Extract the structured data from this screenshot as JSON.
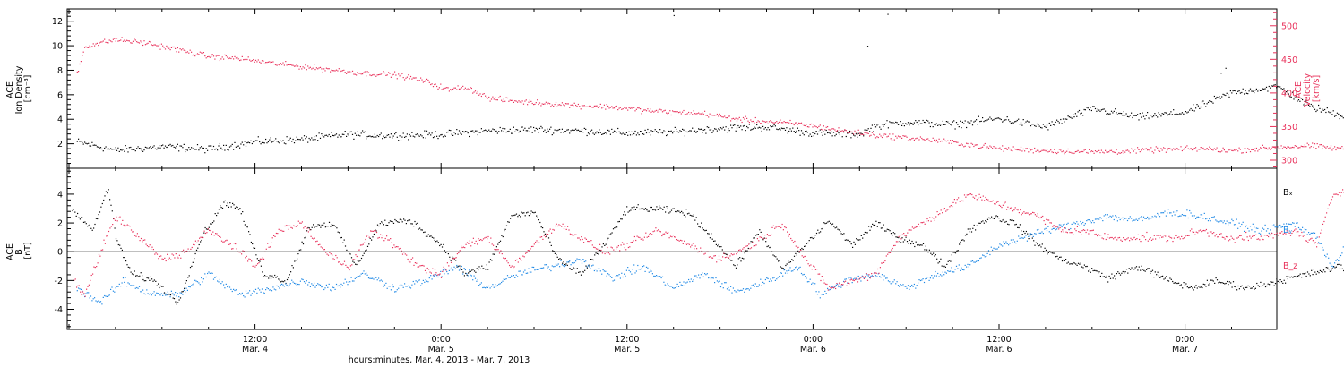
{
  "chart_data": [
    {
      "type": "scatter",
      "name": "solar-wind-plasma",
      "x_range_hours": [
        0,
        72
      ],
      "left_axis": {
        "label_lines": [
          "ACE",
          "Ion Density",
          "[cm⁻³]"
        ],
        "ylim": [
          0,
          13
        ],
        "ticks": [
          2,
          4,
          6,
          8,
          10,
          12
        ],
        "color": "#000000"
      },
      "right_axis": {
        "label_lines": [
          "ACE",
          "Velocity",
          "[km/s]"
        ],
        "ylim": [
          288,
          525
        ],
        "ticks": [
          300,
          350,
          400,
          450,
          500
        ],
        "color": "#e8305a"
      },
      "series": [
        {
          "axis": "left",
          "color": "#000000",
          "jitter": 0.45,
          "points": [
            [
              0.5,
              2.2
            ],
            [
              3,
              1.5
            ],
            [
              6,
              1.8
            ],
            [
              9,
              1.6
            ],
            [
              12,
              2.2
            ],
            [
              15,
              2.4
            ],
            [
              18,
              2.8
            ],
            [
              21,
              2.7
            ],
            [
              24,
              2.8
            ],
            [
              27,
              3.1
            ],
            [
              30,
              3.2
            ],
            [
              33,
              3.1
            ],
            [
              36,
              2.9
            ],
            [
              39,
              3.0
            ],
            [
              42,
              3.3
            ],
            [
              45,
              3.4
            ],
            [
              48,
              2.9
            ],
            [
              51,
              2.8
            ],
            [
              52,
              3.5
            ],
            [
              54,
              3.8
            ],
            [
              57,
              3.6
            ],
            [
              60,
              4.1
            ],
            [
              63,
              3.4
            ],
            [
              66,
              4.9
            ],
            [
              69,
              4.2
            ],
            [
              72,
              4.6
            ],
            [
              75,
              6.2
            ],
            [
              78,
              6.7
            ],
            [
              80,
              5.1
            ],
            [
              83,
              4.0
            ],
            [
              84.5,
              3.5
            ],
            [
              84,
              4.0
            ]
          ]
        },
        {
          "axis": "right",
          "color": "#e8305a",
          "jitter": 6,
          "points": [
            [
              0.5,
              430
            ],
            [
              1,
              470
            ],
            [
              3,
              480
            ],
            [
              5,
              475
            ],
            [
              7,
              465
            ],
            [
              9,
              455
            ],
            [
              11,
              452
            ],
            [
              13,
              445
            ],
            [
              15,
              440
            ],
            [
              17,
              435
            ],
            [
              19,
              430
            ],
            [
              21,
              428
            ],
            [
              23,
              418
            ],
            [
              24.5,
              405
            ],
            [
              25.5,
              410
            ],
            [
              26.5,
              400
            ],
            [
              27,
              393
            ],
            [
              29,
              388
            ],
            [
              31,
              385
            ],
            [
              33,
              382
            ],
            [
              35,
              380
            ],
            [
              37,
              375
            ],
            [
              39,
              372
            ],
            [
              41,
              370
            ],
            [
              43,
              362
            ],
            [
              45,
              358
            ],
            [
              47,
              355
            ],
            [
              48.5,
              350
            ],
            [
              50,
              344
            ],
            [
              52,
              338
            ],
            [
              54,
              334
            ],
            [
              56,
              330
            ],
            [
              58,
              324
            ],
            [
              60,
              318
            ],
            [
              63,
              315
            ],
            [
              66,
              313
            ],
            [
              68,
              314
            ],
            [
              70,
              316
            ],
            [
              73,
              318
            ],
            [
              75,
              315
            ],
            [
              78,
              320
            ],
            [
              80,
              322
            ],
            [
              82,
              318
            ],
            [
              84,
              312
            ]
          ]
        }
      ],
      "outliers": [
        [
          52.8,
          12.6
        ],
        [
          51.5,
          10.0
        ],
        [
          74.6,
          8.2
        ],
        [
          74.3,
          7.8
        ],
        [
          84.3,
          9.0
        ],
        [
          39.0,
          12.5
        ]
      ]
    },
    {
      "type": "scatter",
      "name": "imf-components",
      "x_range_hours": [
        0,
        72
      ],
      "left_axis": {
        "label_lines": [
          "ACE",
          "B",
          "[nT]"
        ],
        "ylim": [
          -5.4,
          5.8
        ],
        "ticks": [
          -4,
          -2,
          0,
          2,
          4
        ],
        "color": "#000000"
      },
      "zero_line": true,
      "legend": [
        {
          "label": "Bₓ",
          "color": "#000000"
        },
        {
          "label": "Bᵧ",
          "color": "#1e88e5"
        },
        {
          "label": "B_z",
          "color": "#e8305a"
        }
      ],
      "series": [
        {
          "name": "Bx",
          "color": "#000000",
          "jitter": 0.35,
          "points": [
            [
              0.2,
              3.0
            ],
            [
              1.5,
              1.5
            ],
            [
              2.5,
              4.5
            ],
            [
              3,
              1.0
            ],
            [
              4,
              -1.5
            ],
            [
              5.5,
              -2.0
            ],
            [
              7,
              -3.5
            ],
            [
              8.5,
              1.0
            ],
            [
              10,
              3.5
            ],
            [
              11,
              3.0
            ],
            [
              12.5,
              -1.5
            ],
            [
              14,
              -2.0
            ],
            [
              15.5,
              1.8
            ],
            [
              17,
              2.0
            ],
            [
              18.5,
              -1.0
            ],
            [
              20,
              2.0
            ],
            [
              22,
              2.2
            ],
            [
              24,
              0.5
            ],
            [
              25.5,
              -1.5
            ],
            [
              27,
              -1.0
            ],
            [
              28.5,
              2.5
            ],
            [
              30,
              2.8
            ],
            [
              31.5,
              -0.5
            ],
            [
              33,
              -1.5
            ],
            [
              34.5,
              0.5
            ],
            [
              36,
              3.0
            ],
            [
              38,
              3.0
            ],
            [
              40,
              2.7
            ],
            [
              41.5,
              1.0
            ],
            [
              43,
              -1.0
            ],
            [
              44.5,
              1.5
            ],
            [
              46,
              -1.2
            ],
            [
              47.5,
              0.5
            ],
            [
              49,
              2.2
            ],
            [
              50.5,
              0.5
            ],
            [
              52,
              2.0
            ],
            [
              53.5,
              1.0
            ],
            [
              55,
              0.5
            ],
            [
              56.5,
              -1.0
            ],
            [
              58,
              1.5
            ],
            [
              59.5,
              2.5
            ],
            [
              61,
              2.0
            ],
            [
              62.5,
              0.5
            ],
            [
              64,
              -0.5
            ],
            [
              65.5,
              -1.0
            ],
            [
              67,
              -1.8
            ],
            [
              69,
              -1.0
            ],
            [
              71,
              -2.0
            ],
            [
              72.5,
              -2.5
            ],
            [
              74,
              -2.0
            ],
            [
              76,
              -2.5
            ],
            [
              78,
              -2.0
            ],
            [
              80,
              -1.5
            ],
            [
              82,
              -1.0
            ],
            [
              83,
              -2.5
            ],
            [
              84,
              -3.0
            ]
          ]
        },
        {
          "name": "By",
          "color": "#1e88e5",
          "jitter": 0.4,
          "points": [
            [
              0.5,
              -2.5
            ],
            [
              2,
              -3.5
            ],
            [
              3.5,
              -2.0
            ],
            [
              5,
              -2.8
            ],
            [
              7,
              -3.0
            ],
            [
              9,
              -1.5
            ],
            [
              11,
              -3.0
            ],
            [
              13,
              -2.5
            ],
            [
              15,
              -2.0
            ],
            [
              17,
              -2.5
            ],
            [
              19,
              -1.5
            ],
            [
              21,
              -2.5
            ],
            [
              23,
              -2.0
            ],
            [
              25,
              -1.0
            ],
            [
              27,
              -2.5
            ],
            [
              29,
              -1.5
            ],
            [
              31,
              -1.0
            ],
            [
              33,
              -0.5
            ],
            [
              35,
              -1.8
            ],
            [
              37,
              -1.0
            ],
            [
              39,
              -2.5
            ],
            [
              41,
              -1.5
            ],
            [
              43,
              -2.8
            ],
            [
              45,
              -2.0
            ],
            [
              47,
              -1.0
            ],
            [
              48.5,
              -3.0
            ],
            [
              50,
              -2.0
            ],
            [
              52,
              -1.5
            ],
            [
              54,
              -2.5
            ],
            [
              56,
              -1.5
            ],
            [
              58,
              -1.0
            ],
            [
              60,
              0.5
            ],
            [
              61.5,
              1.0
            ],
            [
              63,
              1.5
            ],
            [
              65,
              2.0
            ],
            [
              67,
              2.5
            ],
            [
              69,
              2.2
            ],
            [
              71,
              2.8
            ],
            [
              73,
              2.5
            ],
            [
              75,
              2.0
            ],
            [
              77,
              1.5
            ],
            [
              79,
              2.0
            ],
            [
              80.5,
              1.0
            ],
            [
              81.5,
              -1.0
            ],
            [
              83,
              1.5
            ],
            [
              84.5,
              3.0
            ]
          ]
        },
        {
          "name": "Bz",
          "color": "#e8305a",
          "jitter": 0.4,
          "points": [
            [
              0.3,
              -2.0
            ],
            [
              1,
              -3.0
            ],
            [
              2,
              0.0
            ],
            [
              3,
              2.5
            ],
            [
              4.5,
              1.0
            ],
            [
              6,
              -0.5
            ],
            [
              7.5,
              0.0
            ],
            [
              9,
              1.5
            ],
            [
              10.5,
              0.5
            ],
            [
              12,
              -1.0
            ],
            [
              13.5,
              1.5
            ],
            [
              15,
              2.0
            ],
            [
              16.5,
              0.0
            ],
            [
              18,
              -1.0
            ],
            [
              19.5,
              1.5
            ],
            [
              21,
              0.5
            ],
            [
              22.5,
              -1.0
            ],
            [
              24,
              -1.5
            ],
            [
              25.5,
              0.5
            ],
            [
              27,
              1.0
            ],
            [
              28.5,
              -1.0
            ],
            [
              30,
              0.5
            ],
            [
              31.5,
              2.0
            ],
            [
              33,
              1.0
            ],
            [
              34.5,
              0.0
            ],
            [
              36,
              0.5
            ],
            [
              38,
              1.5
            ],
            [
              40,
              0.5
            ],
            [
              42,
              -0.5
            ],
            [
              44,
              0.5
            ],
            [
              46,
              2.0
            ],
            [
              47.5,
              -0.5
            ],
            [
              49,
              -2.5
            ],
            [
              50.5,
              -2.0
            ],
            [
              52,
              -1.5
            ],
            [
              53.5,
              1.0
            ],
            [
              55,
              2.0
            ],
            [
              56.5,
              3.0
            ],
            [
              58,
              4.0
            ],
            [
              59.5,
              3.5
            ],
            [
              61,
              3.0
            ],
            [
              62.5,
              2.5
            ],
            [
              64,
              1.5
            ],
            [
              65.5,
              1.5
            ],
            [
              67,
              1.0
            ],
            [
              68.5,
              1.0
            ],
            [
              70,
              1.0
            ],
            [
              71.5,
              1.0
            ],
            [
              73,
              1.5
            ],
            [
              75,
              1.0
            ],
            [
              77,
              1.0
            ],
            [
              79,
              1.5
            ],
            [
              80.5,
              0.5
            ],
            [
              81.5,
              4.0
            ],
            [
              83,
              4.5
            ],
            [
              84.5,
              5.0
            ]
          ]
        }
      ]
    }
  ],
  "x_axis": {
    "ticks": [
      {
        "hour": 12,
        "line1": "12:00",
        "line2": "Mar. 4"
      },
      {
        "hour": 24,
        "line1": "0:00",
        "line2": "Mar. 5"
      },
      {
        "hour": 36,
        "line1": "12:00",
        "line2": "Mar. 5"
      },
      {
        "hour": 48,
        "line1": "0:00",
        "line2": "Mar. 6"
      },
      {
        "hour": 60,
        "line1": "12:00",
        "line2": "Mar. 6"
      },
      {
        "hour": 72,
        "line1": "0:00",
        "line2": "Mar. 7"
      }
    ],
    "label": "hours:minutes, Mar.  4, 2013 - Mar.  7, 2013"
  }
}
